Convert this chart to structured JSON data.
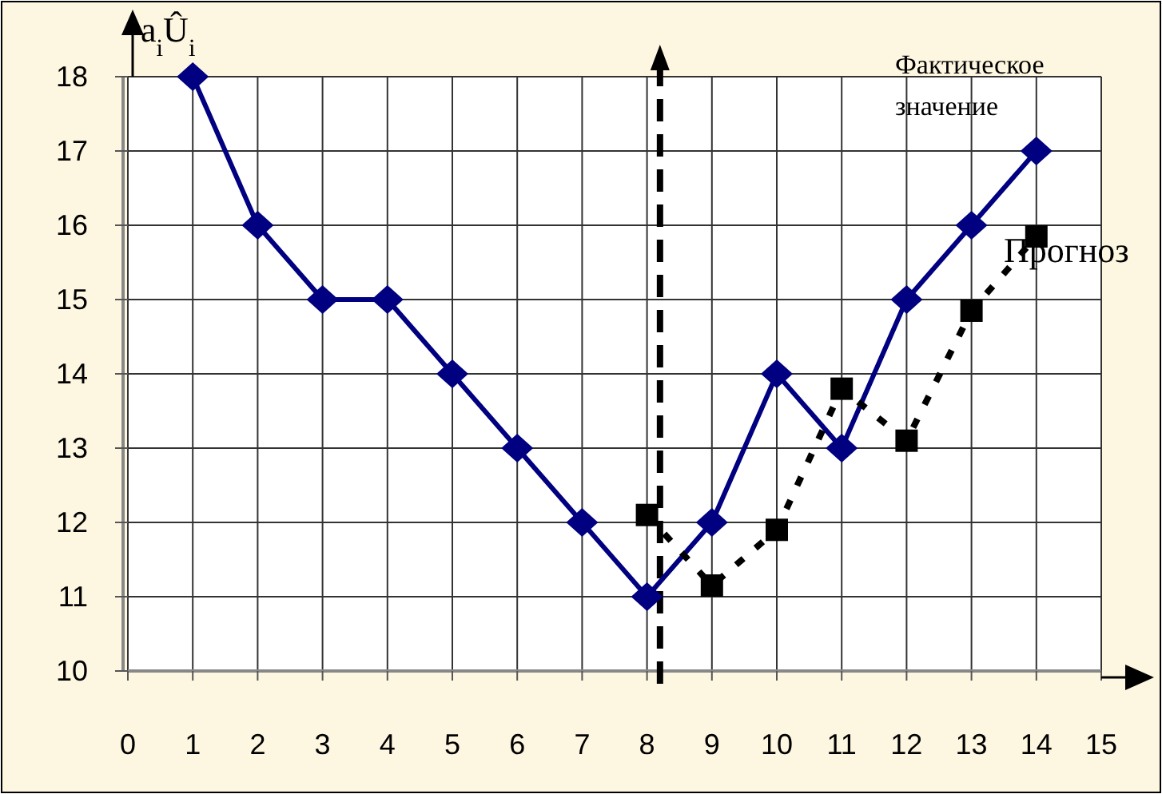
{
  "chart_data": {
    "type": "line",
    "ylabel": "a$_{i}$Û$_{i}$",
    "x": [
      1,
      2,
      3,
      4,
      5,
      6,
      7,
      8,
      9,
      10,
      11,
      12,
      13,
      14
    ],
    "series": [
      {
        "name": "Фактическое значение",
        "color": "#000080",
        "marker": "diamond",
        "line_style": "solid",
        "values": [
          18,
          16,
          15,
          15,
          14,
          13,
          12,
          11,
          12,
          14,
          13,
          15,
          16,
          17
        ]
      },
      {
        "name": "Прогноз",
        "color": "#000000",
        "marker": "square",
        "line_style": "dotted",
        "x": [
          8,
          9,
          10,
          11,
          12,
          13,
          14
        ],
        "values": [
          12.1,
          11.15,
          11.9,
          13.8,
          13.1,
          14.85,
          15.85
        ]
      }
    ],
    "xlim": [
      0,
      15
    ],
    "xticks": [
      0,
      1,
      2,
      3,
      4,
      5,
      6,
      7,
      8,
      9,
      10,
      11,
      12,
      13,
      14,
      15
    ],
    "ylim": [
      10,
      18
    ],
    "yticks": [
      10,
      11,
      12,
      13,
      14,
      15,
      16,
      17,
      18
    ],
    "grid": true,
    "ref_lines": [
      {
        "axis": "x",
        "value": 8.2,
        "line_style": "dashed",
        "color": "#000000"
      }
    ]
  }
}
